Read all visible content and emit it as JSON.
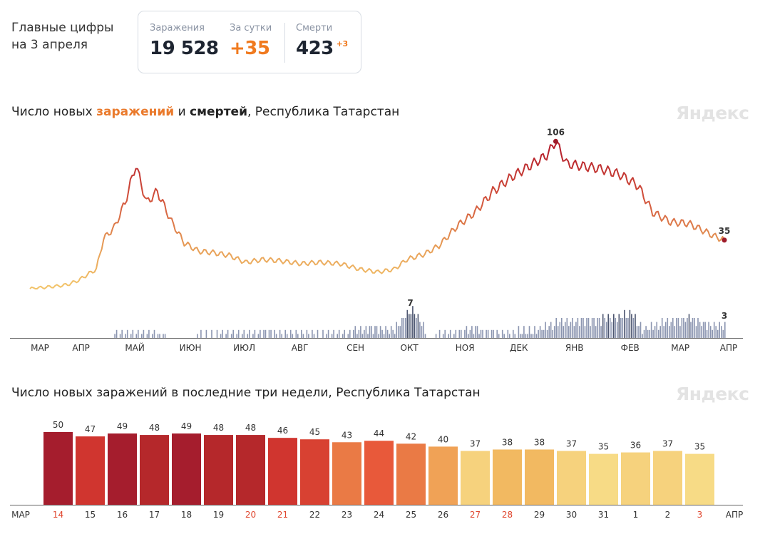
{
  "headline": {
    "line1": "Главные цифры",
    "line2": "на 3 апреля"
  },
  "stats": [
    {
      "label": "Заражения",
      "value": "19 528"
    },
    {
      "label": "За сутки",
      "value": "+35"
    },
    {
      "label": "Смерти",
      "value": "423",
      "delta": "+3"
    }
  ],
  "chart1": {
    "title_parts": [
      "Число новых ",
      "заражений",
      " и ",
      "смертей",
      ", Республика Татарстан"
    ],
    "logo": "Яндекс"
  },
  "chart2": {
    "title": "Число новых заражений в последние три недели, Республика Татарстан",
    "logo": "Яндекс"
  },
  "colors": {
    "orange": "#f07a1f",
    "deaths": "#8b95b0",
    "line_low": "#f2c36a",
    "line_high": "#b51f2c"
  },
  "chart_data": [
    {
      "type": "line",
      "title": "Число новых заражений и смертей, Республика Татарстан",
      "x_tick_labels": [
        "МАР",
        "АПР",
        "МАЙ",
        "ИЮН",
        "ИЮЛ",
        "АВГ",
        "СЕН",
        "ОКТ",
        "НОЯ",
        "ДЕК",
        "ЯНВ",
        "ФЕВ",
        "МАР",
        "АПР"
      ],
      "series": [
        {
          "name": "заражений",
          "x_start": "2020-03-12",
          "anchors": [
            [
              "2020-03-12",
              0
            ],
            [
              "2020-03-20",
              1
            ],
            [
              "2020-03-28",
              2
            ],
            [
              "2020-04-02",
              3
            ],
            [
              "2020-04-08",
              6
            ],
            [
              "2020-04-14",
              11
            ],
            [
              "2020-04-18",
              14
            ],
            [
              "2020-04-22",
              36
            ],
            [
              "2020-04-28",
              44
            ],
            [
              "2020-05-04",
              62
            ],
            [
              "2020-05-10",
              89
            ],
            [
              "2020-05-16",
              62
            ],
            [
              "2020-05-22",
              70
            ],
            [
              "2020-05-30",
              48
            ],
            [
              "2020-06-06",
              33
            ],
            [
              "2020-06-14",
              27
            ],
            [
              "2020-06-22",
              26
            ],
            [
              "2020-07-01",
              24
            ],
            [
              "2020-07-10",
              19
            ],
            [
              "2020-07-20",
              21
            ],
            [
              "2020-07-30",
              20
            ],
            [
              "2020-08-10",
              18
            ],
            [
              "2020-08-20",
              19
            ],
            [
              "2020-09-01",
              18
            ],
            [
              "2020-09-12",
              14
            ],
            [
              "2020-09-22",
              12
            ],
            [
              "2020-10-01",
              14
            ],
            [
              "2020-10-08",
              21
            ],
            [
              "2020-10-18",
              25
            ],
            [
              "2020-10-26",
              31
            ],
            [
              "2020-11-05",
              45
            ],
            [
              "2020-11-15",
              55
            ],
            [
              "2020-11-25",
              70
            ],
            [
              "2020-12-05",
              80
            ],
            [
              "2020-12-15",
              88
            ],
            [
              "2020-12-25",
              96
            ],
            [
              "2020-12-30",
              106
            ],
            [
              "2021-01-05",
              90
            ],
            [
              "2021-01-15",
              88
            ],
            [
              "2021-01-25",
              86
            ],
            [
              "2021-02-04",
              82
            ],
            [
              "2021-02-14",
              74
            ],
            [
              "2021-02-22",
              55
            ],
            [
              "2021-03-04",
              48
            ],
            [
              "2021-03-14",
              47
            ],
            [
              "2021-03-22",
              42
            ],
            [
              "2021-03-28",
              38
            ],
            [
              "2021-04-03",
              35
            ]
          ]
        },
        {
          "name": "смертей",
          "x_start": "2020-03-12",
          "anchors": [
            [
              "2020-03-12",
              0
            ],
            [
              "2020-04-25",
              0
            ],
            [
              "2020-04-28",
              1
            ],
            [
              "2020-05-20",
              1
            ],
            [
              "2020-06-01",
              0
            ],
            [
              "2020-06-25",
              1
            ],
            [
              "2020-07-05",
              1
            ],
            [
              "2020-08-01",
              1
            ],
            [
              "2020-09-01",
              1
            ],
            [
              "2020-09-15",
              2
            ],
            [
              "2020-10-01",
              2
            ],
            [
              "2020-10-06",
              5
            ],
            [
              "2020-10-10",
              7
            ],
            [
              "2020-10-14",
              5
            ],
            [
              "2020-10-20",
              0
            ],
            [
              "2020-10-28",
              1
            ],
            [
              "2020-11-15",
              2
            ],
            [
              "2020-12-01",
              1
            ],
            [
              "2020-12-20",
              2
            ],
            [
              "2021-01-01",
              4
            ],
            [
              "2021-01-15",
              4
            ],
            [
              "2021-02-01",
              5
            ],
            [
              "2021-02-10",
              6
            ],
            [
              "2021-02-16",
              2
            ],
            [
              "2021-03-01",
              4
            ],
            [
              "2021-03-15",
              5
            ],
            [
              "2021-03-25",
              3
            ],
            [
              "2021-04-03",
              3
            ]
          ]
        }
      ],
      "annotations": [
        {
          "label": "106",
          "series": "заражений",
          "value": 106
        },
        {
          "label": "35",
          "series": "заражений",
          "value": 35
        },
        {
          "label": "7",
          "series": "смертей",
          "value": 7
        },
        {
          "label": "3",
          "series": "смертей",
          "value": 3
        }
      ]
    },
    {
      "type": "bar",
      "title": "Число новых заражений в последние три недели, Республика Татарстан",
      "x_edge_labels": [
        "МАР",
        "АПР"
      ],
      "categories": [
        "14",
        "15",
        "16",
        "17",
        "18",
        "19",
        "20",
        "21",
        "22",
        "23",
        "24",
        "25",
        "26",
        "27",
        "28",
        "29",
        "30",
        "31",
        "1",
        "2",
        "3"
      ],
      "values": [
        50,
        47,
        49,
        48,
        49,
        48,
        48,
        46,
        45,
        43,
        44,
        42,
        40,
        37,
        38,
        38,
        37,
        35,
        36,
        37,
        35
      ],
      "weekend": [
        true,
        false,
        false,
        false,
        false,
        false,
        true,
        true,
        false,
        false,
        false,
        false,
        false,
        true,
        true,
        false,
        false,
        false,
        false,
        false,
        true
      ]
    }
  ]
}
